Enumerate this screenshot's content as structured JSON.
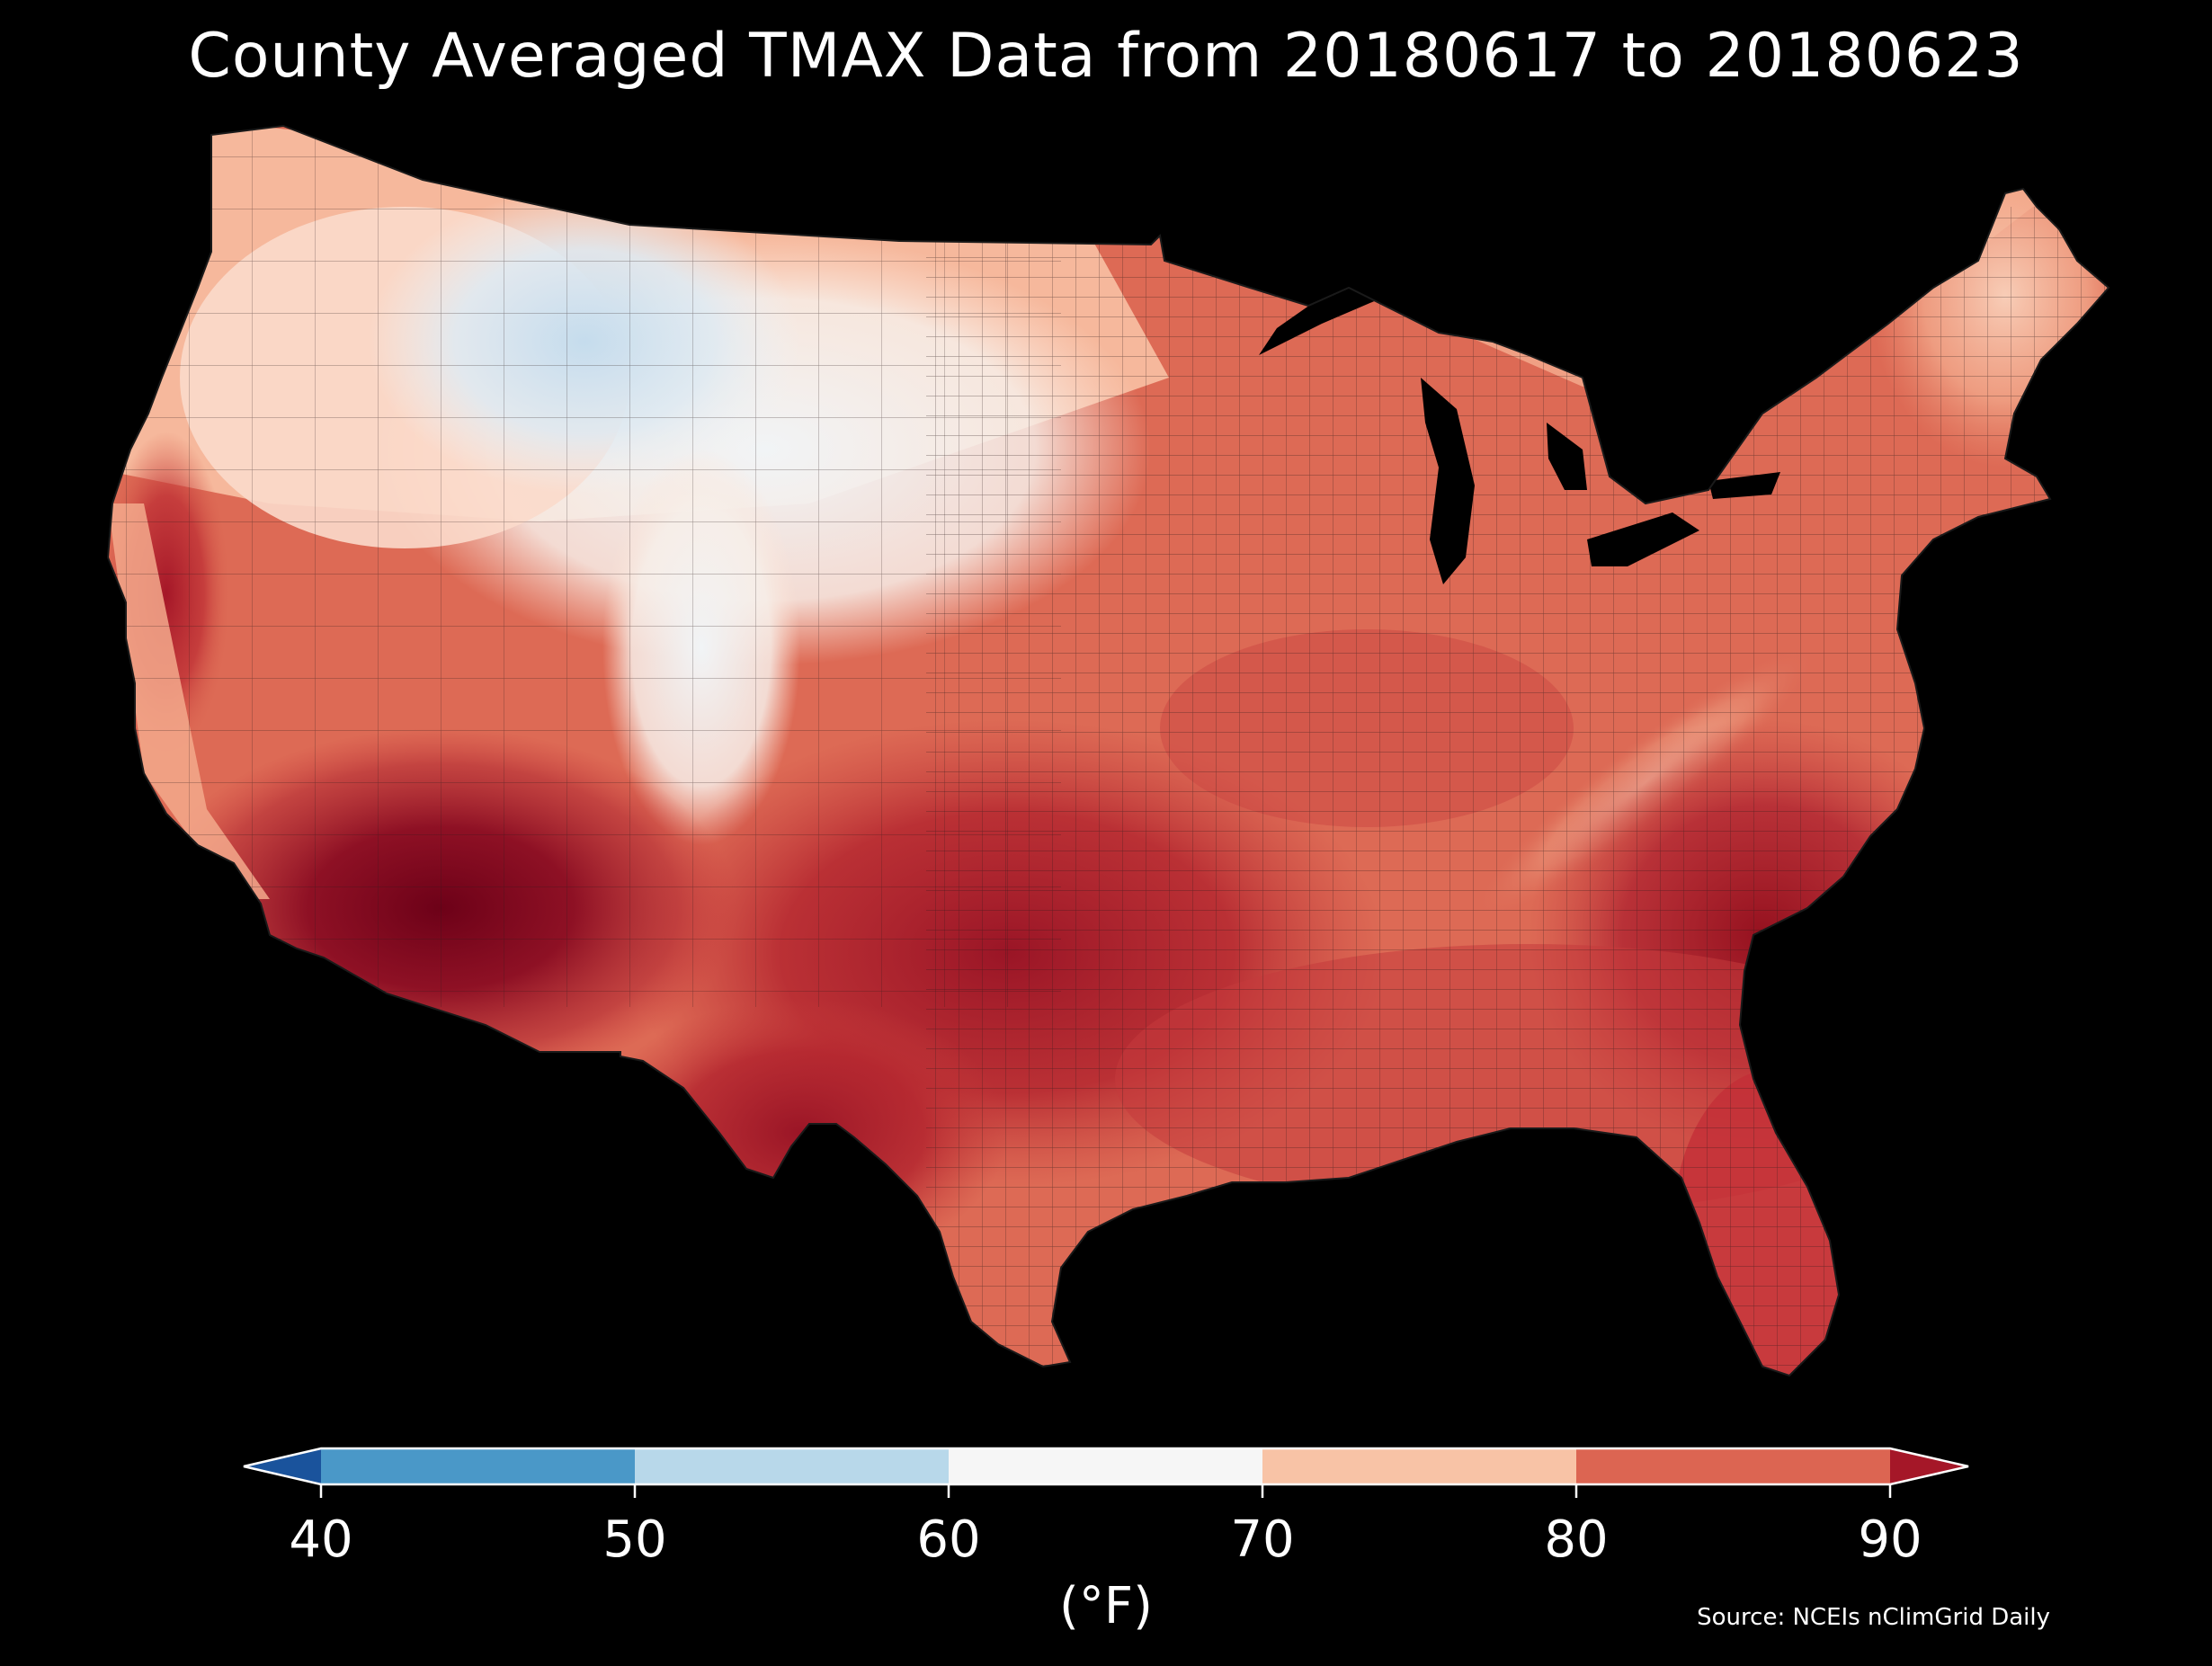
{
  "title": "County Averaged TMAX Data from 20180617 to 20180623",
  "colorbar": {
    "ticks": [
      "40",
      "50",
      "60",
      "70",
      "80",
      "90"
    ],
    "unit_label": "(°F)",
    "bins": [
      {
        "range": "<40",
        "color": "#1a539c"
      },
      {
        "range": "40-50",
        "color": "#4a98c8"
      },
      {
        "range": "50-60",
        "color": "#b8d8ea"
      },
      {
        "range": "60-70",
        "color": "#f6f6f6"
      },
      {
        "range": "70-80",
        "color": "#f8c3a6"
      },
      {
        "range": "80-90",
        "color": "#dc6552"
      },
      {
        "range": ">90",
        "color": "#a51728"
      }
    ],
    "extend": "both"
  },
  "source": "Source: NCEIs nClimGrid Daily",
  "colors": {
    "background": "#000000",
    "text": "#ffffff",
    "border": "#222222",
    "coldest": "#cfe3f0",
    "cool": "#eef3f6",
    "mild": "#fde4d6",
    "warm": "#f4a58a",
    "hot": "#d8574a",
    "hotter": "#bb2e35",
    "hottest": "#8a0c22",
    "extreme": "#6d0118"
  }
}
